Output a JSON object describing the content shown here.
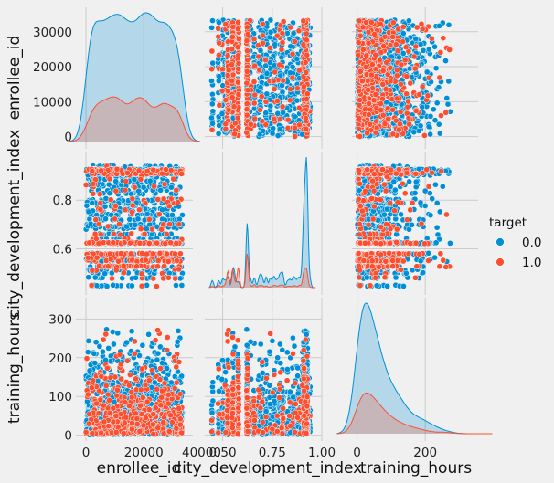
{
  "chart_data": {
    "type": "scatter",
    "kind": "pairplot",
    "variables": [
      "enrollee_id",
      "city_development_index",
      "training_hours"
    ],
    "hue": "target",
    "ranges": {
      "enrollee_id": [
        0,
        33400
      ],
      "city_development_index": [
        0.45,
        0.95
      ],
      "training_hours": [
        1,
        336
      ]
    },
    "axis_limits": {
      "enrollee_id": [
        -3500,
        37000
      ],
      "city_development_index": [
        0.41,
        1.0
      ],
      "training_hours": [
        -15,
        355
      ]
    },
    "ticks": {
      "enrollee_id": [
        "0",
        "10000",
        "20000",
        "30000"
      ],
      "city_development_index": [
        "0.6",
        "0.8"
      ],
      "training_hours": [
        "0",
        "100",
        "200",
        "300"
      ],
      "x_enrollee_id": [
        "0",
        "20000",
        "40000"
      ],
      "x_city_development_index": [
        "0.50",
        "0.75",
        "1.00"
      ],
      "x_training_hours": [
        "0",
        "200"
      ]
    },
    "tick_values": {
      "enrollee_id_y": [
        0,
        10000,
        20000,
        30000
      ],
      "enrollee_id_x": [
        0,
        20000,
        40000
      ],
      "city_development_index_y": [
        0.6,
        0.8
      ],
      "city_development_index_x": [
        0.5,
        0.75,
        1.0
      ],
      "training_hours_y": [
        0,
        100,
        200,
        300
      ],
      "training_hours_x": [
        0,
        200
      ]
    },
    "series": [
      {
        "name": "0.0",
        "color": "#008fd5"
      },
      {
        "name": "1.0",
        "color": "#fc4f30"
      }
    ],
    "legend": {
      "title": "target",
      "placement": "right"
    },
    "grid": true
  }
}
